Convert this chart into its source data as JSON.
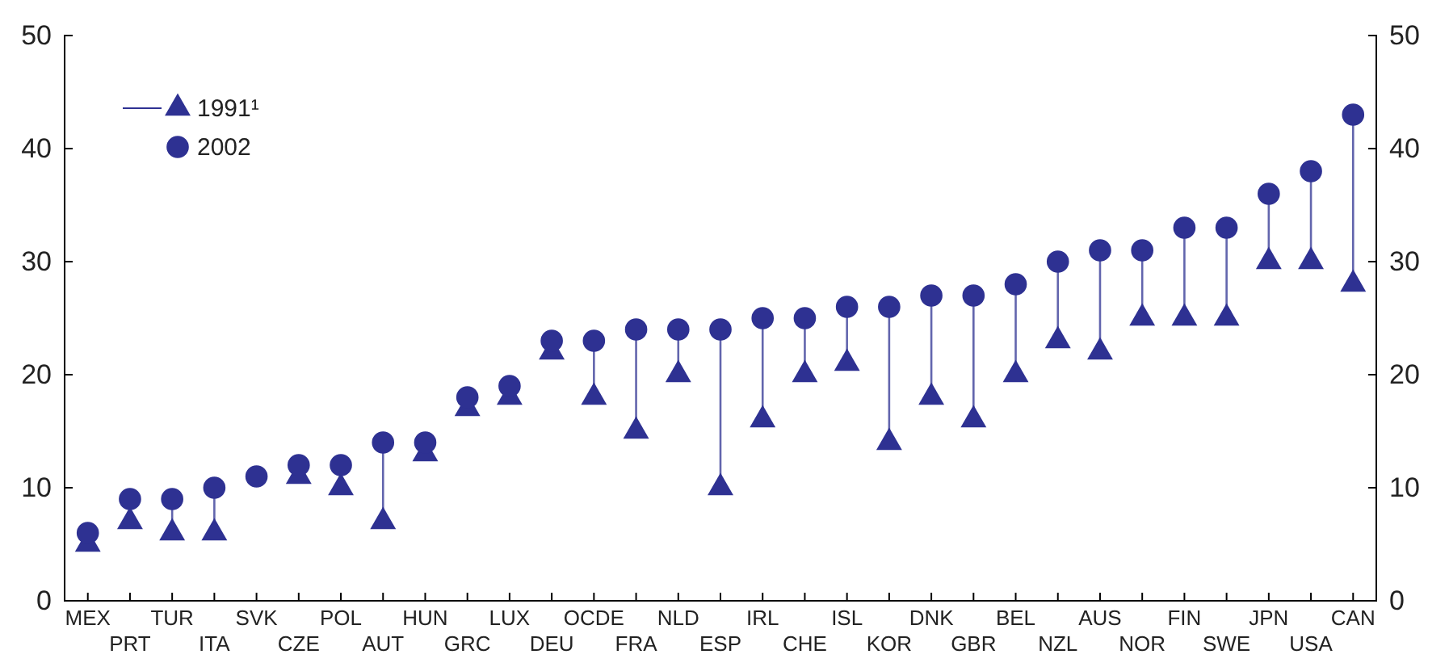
{
  "chart_data": {
    "type": "scatter",
    "categories": [
      "MEX",
      "PRT",
      "TUR",
      "ITA",
      "SVK",
      "CZE",
      "POL",
      "AUT",
      "HUN",
      "GRC",
      "LUX",
      "DEU",
      "OCDE",
      "FRA",
      "NLD",
      "ESP",
      "IRL",
      "CHE",
      "ISL",
      "KOR",
      "DNK",
      "GBR",
      "BEL",
      "NZL",
      "AUS",
      "NOR",
      "FIN",
      "SWE",
      "JPN",
      "USA",
      "CAN"
    ],
    "series": [
      {
        "name": "1991¹",
        "color": "#2e3192",
        "marker": "triangle",
        "values": [
          5,
          7,
          6,
          6,
          null,
          11,
          10,
          7,
          13,
          17,
          18,
          22,
          18,
          15,
          20,
          10,
          16,
          20,
          21,
          14,
          18,
          16,
          20,
          23,
          22,
          25,
          25,
          25,
          30,
          30,
          28
        ]
      },
      {
        "name": "2002",
        "color": "#2e3192",
        "marker": "circle",
        "values": [
          6,
          9,
          9,
          10,
          11,
          12,
          12,
          14,
          14,
          18,
          19,
          23,
          23,
          24,
          24,
          24,
          25,
          25,
          26,
          26,
          27,
          27,
          28,
          30,
          31,
          31,
          33,
          33,
          36,
          38,
          43
        ]
      }
    ],
    "ylim": [
      0,
      50
    ],
    "yticks": [
      0,
      10,
      20,
      30,
      40,
      50
    ],
    "y2lim": [
      0,
      50
    ],
    "y2ticks": [
      0,
      10,
      20,
      30,
      40,
      50
    ],
    "legend": "top left",
    "grid": false
  }
}
